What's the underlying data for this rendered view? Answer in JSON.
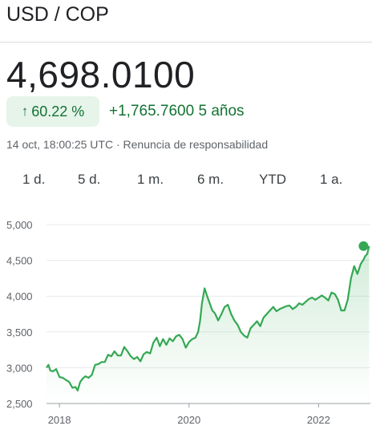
{
  "header": {
    "pair": "USD / COP"
  },
  "quote": {
    "price": "4,698.0100",
    "percent_change": "60.22 %",
    "abs_change": "+1,765.7600",
    "period": "5 años",
    "timestamp": "14 oct, 18:00:25 UTC",
    "disclaimer": "Renuncia de responsabilidad"
  },
  "ranges": [
    "1 d.",
    "5 d.",
    "1 m.",
    "6 m.",
    "YTD",
    "1 a."
  ],
  "colors": {
    "up": "#137333",
    "line": "#34a853",
    "pill_bg": "#e6f4ea"
  },
  "icons": {
    "change_arrow": "arrow-up-icon"
  },
  "chart_data": {
    "type": "line",
    "ylim": [
      2500,
      5000
    ],
    "y_ticks": [
      "5,000",
      "4,500",
      "4,000",
      "3,500",
      "3,000",
      "2,500"
    ],
    "y_tick_values": [
      5000,
      4500,
      4000,
      3500,
      3000,
      2500
    ],
    "xlim": [
      2017.8,
      2022.8
    ],
    "x_ticks": [
      "2018",
      "2020",
      "2022"
    ],
    "x_tick_values": [
      2018,
      2020,
      2022
    ],
    "grid": "horizontal",
    "area_fill": true,
    "end_marker": true,
    "series": [
      {
        "x": [
          2017.8,
          2017.83,
          2017.86,
          2017.9,
          2017.95,
          2018.0,
          2018.05,
          2018.1,
          2018.15,
          2018.2,
          2018.25,
          2018.28,
          2018.32,
          2018.36,
          2018.4,
          2018.45,
          2018.5,
          2018.55,
          2018.6,
          2018.65,
          2018.7,
          2018.75,
          2018.8,
          2018.85,
          2018.9,
          2018.95,
          2019.0,
          2019.05,
          2019.1,
          2019.15,
          2019.2,
          2019.25,
          2019.3,
          2019.35,
          2019.4,
          2019.45,
          2019.5,
          2019.55,
          2019.6,
          2019.65,
          2019.7,
          2019.75,
          2019.8,
          2019.85,
          2019.9,
          2019.95,
          2020.0,
          2020.05,
          2020.1,
          2020.14,
          2020.17,
          2020.2,
          2020.24,
          2020.28,
          2020.32,
          2020.36,
          2020.4,
          2020.45,
          2020.5,
          2020.55,
          2020.6,
          2020.65,
          2020.7,
          2020.75,
          2020.8,
          2020.85,
          2020.9,
          2020.95,
          2021.0,
          2021.05,
          2021.1,
          2021.15,
          2021.2,
          2021.25,
          2021.3,
          2021.35,
          2021.4,
          2021.45,
          2021.5,
          2021.55,
          2021.6,
          2021.65,
          2021.7,
          2021.75,
          2021.8,
          2021.85,
          2021.9,
          2021.95,
          2022.0,
          2022.05,
          2022.1,
          2022.15,
          2022.2,
          2022.25,
          2022.3,
          2022.35,
          2022.4,
          2022.45,
          2022.5,
          2022.55,
          2022.6,
          2022.65,
          2022.7,
          2022.72,
          2022.75,
          2022.78
        ],
        "values": [
          3000,
          3040,
          2960,
          2950,
          2980,
          2870,
          2860,
          2830,
          2800,
          2720,
          2730,
          2680,
          2800,
          2850,
          2880,
          2860,
          2900,
          3040,
          3050,
          3080,
          3080,
          3180,
          3160,
          3230,
          3170,
          3170,
          3290,
          3230,
          3160,
          3120,
          3150,
          3090,
          3190,
          3220,
          3200,
          3350,
          3420,
          3300,
          3400,
          3320,
          3410,
          3370,
          3440,
          3460,
          3400,
          3280,
          3360,
          3400,
          3420,
          3500,
          3650,
          3900,
          4110,
          4000,
          3900,
          3800,
          3760,
          3660,
          3750,
          3850,
          3880,
          3750,
          3660,
          3600,
          3500,
          3450,
          3420,
          3550,
          3600,
          3650,
          3580,
          3700,
          3750,
          3800,
          3850,
          3790,
          3820,
          3840,
          3860,
          3870,
          3820,
          3850,
          3900,
          3880,
          3920,
          3960,
          3980,
          3950,
          3980,
          4010,
          3980,
          3940,
          4050,
          4030,
          3950,
          3800,
          3800,
          3950,
          4250,
          4420,
          4310,
          4450,
          4520,
          4560,
          4590,
          4700
        ]
      }
    ]
  }
}
